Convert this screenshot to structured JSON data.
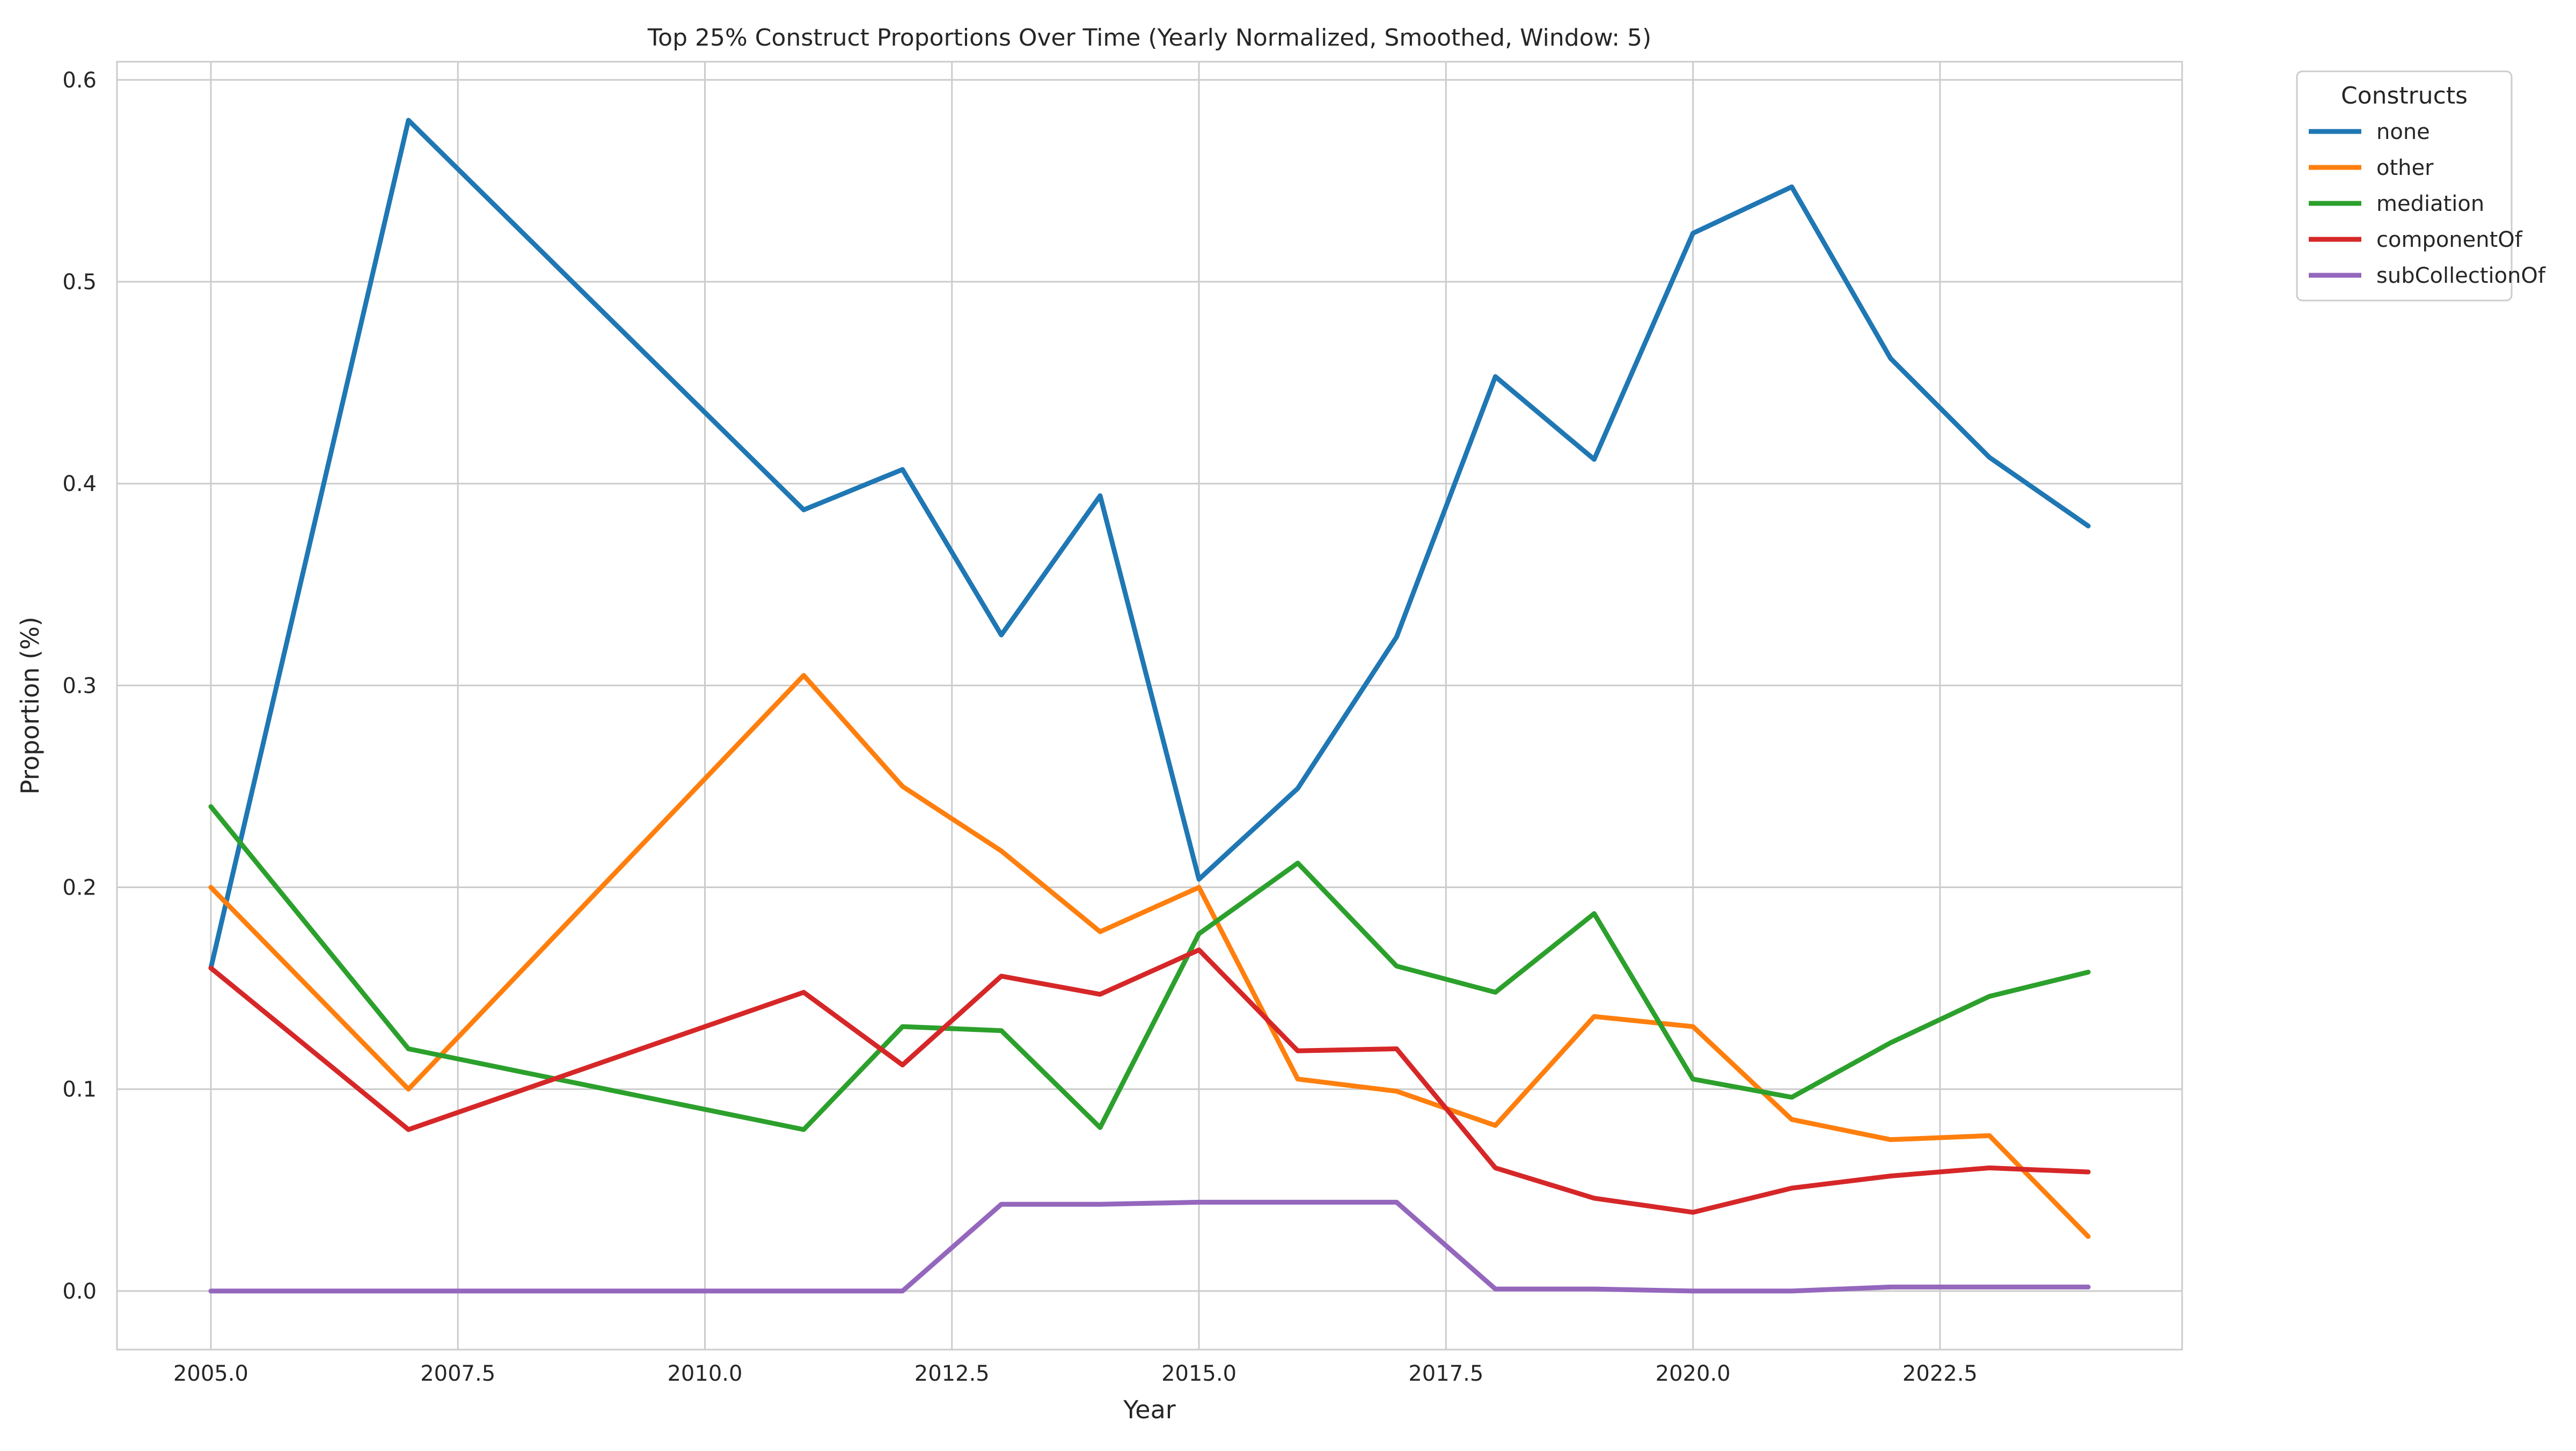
{
  "chart_data": {
    "type": "line",
    "title": "Top 25% Construct Proportions Over Time (Yearly Normalized, Smoothed, Window: 5)",
    "xlabel": "Year",
    "ylabel": "Proportion (%)",
    "xlim": [
      2004.05,
      2024.95
    ],
    "ylim": [
      -0.029,
      0.609
    ],
    "x_ticks": [
      2005.0,
      2007.5,
      2010.0,
      2012.5,
      2015.0,
      2017.5,
      2020.0,
      2022.5
    ],
    "x_tick_labels": [
      "2005.0",
      "2007.5",
      "2010.0",
      "2012.5",
      "2015.0",
      "2017.5",
      "2020.0",
      "2022.5"
    ],
    "y_ticks": [
      0.0,
      0.1,
      0.2,
      0.3,
      0.4,
      0.5,
      0.6
    ],
    "y_tick_labels": [
      "0.0",
      "0.1",
      "0.2",
      "0.3",
      "0.4",
      "0.5",
      "0.6"
    ],
    "grid": true,
    "legend": {
      "title": "Constructs",
      "placement": "outside-top-right"
    },
    "x": [
      2005,
      2007,
      2011,
      2012,
      2013,
      2014,
      2015,
      2016,
      2017,
      2018,
      2019,
      2020,
      2021,
      2022,
      2023,
      2024
    ],
    "series": [
      {
        "name": "none",
        "color": "#1f77b4",
        "values": [
          0.16,
          0.58,
          0.387,
          0.407,
          0.325,
          0.394,
          0.204,
          0.249,
          0.324,
          0.453,
          0.412,
          0.524,
          0.547,
          0.462,
          0.413,
          0.379
        ]
      },
      {
        "name": "other",
        "color": "#ff7f0e",
        "values": [
          0.2,
          0.1,
          0.305,
          0.25,
          0.218,
          0.178,
          0.2,
          0.105,
          0.099,
          0.082,
          0.136,
          0.131,
          0.085,
          0.075,
          0.077,
          0.027
        ]
      },
      {
        "name": "mediation",
        "color": "#2ca02c",
        "values": [
          0.24,
          0.12,
          0.08,
          0.131,
          0.129,
          0.081,
          0.177,
          0.212,
          0.161,
          0.148,
          0.187,
          0.105,
          0.096,
          0.123,
          0.146,
          0.158
        ]
      },
      {
        "name": "componentOf",
        "color": "#d62728",
        "values": [
          0.16,
          0.08,
          0.148,
          0.112,
          0.156,
          0.147,
          0.169,
          0.119,
          0.12,
          0.061,
          0.046,
          0.039,
          0.051,
          0.057,
          0.061,
          0.059
        ]
      },
      {
        "name": "subCollectionOf",
        "color": "#9467bd",
        "values": [
          0.0,
          0.0,
          0.0,
          0.0,
          0.043,
          0.043,
          0.044,
          0.044,
          0.044,
          0.001,
          0.001,
          0.0,
          0.0,
          0.002,
          0.002,
          0.002
        ]
      }
    ]
  }
}
